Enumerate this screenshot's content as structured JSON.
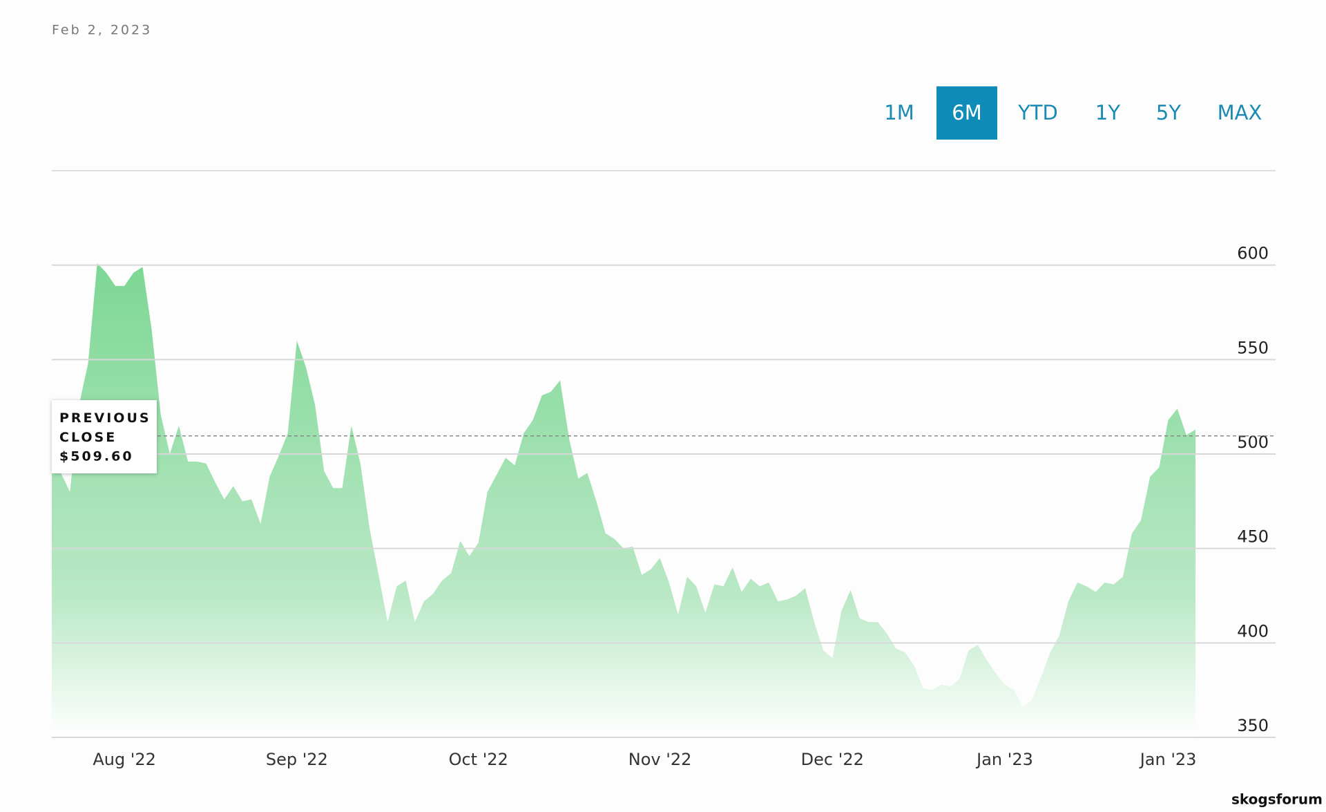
{
  "date": "Feb 2, 2023",
  "ranges": [
    "1M",
    "6M",
    "YTD",
    "1Y",
    "5Y",
    "MAX"
  ],
  "active_range": 1,
  "watermark": "skogsforum",
  "chart_data": {
    "type": "area",
    "color": "#7dd794",
    "categories": [
      null,
      null,
      null,
      null,
      null,
      null,
      null,
      null,
      "Aug '22",
      null,
      null,
      null,
      null,
      null,
      null,
      null,
      null,
      null,
      null,
      null,
      null,
      null,
      null,
      null,
      null,
      null,
      null,
      "Sep '22",
      null,
      null,
      null,
      null,
      null,
      null,
      null,
      null,
      null,
      null,
      null,
      null,
      null,
      null,
      null,
      null,
      null,
      null,
      null,
      "Oct '22",
      null,
      null,
      null,
      null,
      null,
      null,
      null,
      null,
      null,
      null,
      null,
      null,
      null,
      null,
      null,
      null,
      null,
      null,
      null,
      "Nov '22",
      null,
      null,
      null,
      null,
      null,
      null,
      null,
      null,
      null,
      null,
      null,
      null,
      null,
      null,
      null,
      null,
      null,
      null,
      "Dec '22",
      null,
      null,
      null,
      null,
      null,
      null,
      null,
      null,
      null,
      null,
      null,
      null,
      null,
      null,
      null,
      null,
      null,
      null,
      "Jan '23",
      null,
      null,
      null,
      null,
      null,
      null,
      null,
      null,
      null,
      null,
      null,
      null,
      null,
      null,
      null,
      null,
      null,
      "Jan '23",
      null,
      null,
      null
    ],
    "values": [
      497,
      490,
      480,
      526,
      548,
      601,
      596,
      589,
      589,
      596,
      599,
      566,
      521,
      500,
      515,
      496,
      496,
      495,
      485,
      476,
      483,
      475,
      476,
      463,
      488,
      499,
      511,
      560,
      546,
      526,
      491,
      482,
      482,
      515,
      495,
      461,
      436,
      411,
      430,
      433,
      411,
      422,
      426,
      433,
      437,
      454,
      446,
      453,
      480,
      489,
      498,
      494,
      511,
      518,
      531,
      533,
      539,
      508,
      487,
      490,
      475,
      458,
      455,
      450,
      451,
      436,
      439,
      445,
      432,
      415,
      435,
      430,
      416,
      431,
      430,
      440,
      427,
      434,
      430,
      432,
      422,
      423,
      425,
      429,
      411,
      396,
      392,
      417,
      428,
      413,
      411,
      411,
      405,
      397,
      395,
      388,
      376,
      375,
      378,
      377,
      381,
      396,
      399,
      391,
      384,
      378,
      375,
      366,
      370,
      382,
      395,
      404,
      422,
      432,
      430,
      427,
      432,
      431,
      435,
      458,
      465,
      488,
      493,
      518,
      524,
      510,
      513
    ],
    "ylim": [
      350,
      650
    ],
    "yticks": [
      350,
      400,
      450,
      500,
      550,
      600
    ],
    "grid": true,
    "previous_close": {
      "label": "PREVIOUS CLOSE",
      "value": 509.6,
      "value_label": "$509.60"
    }
  }
}
